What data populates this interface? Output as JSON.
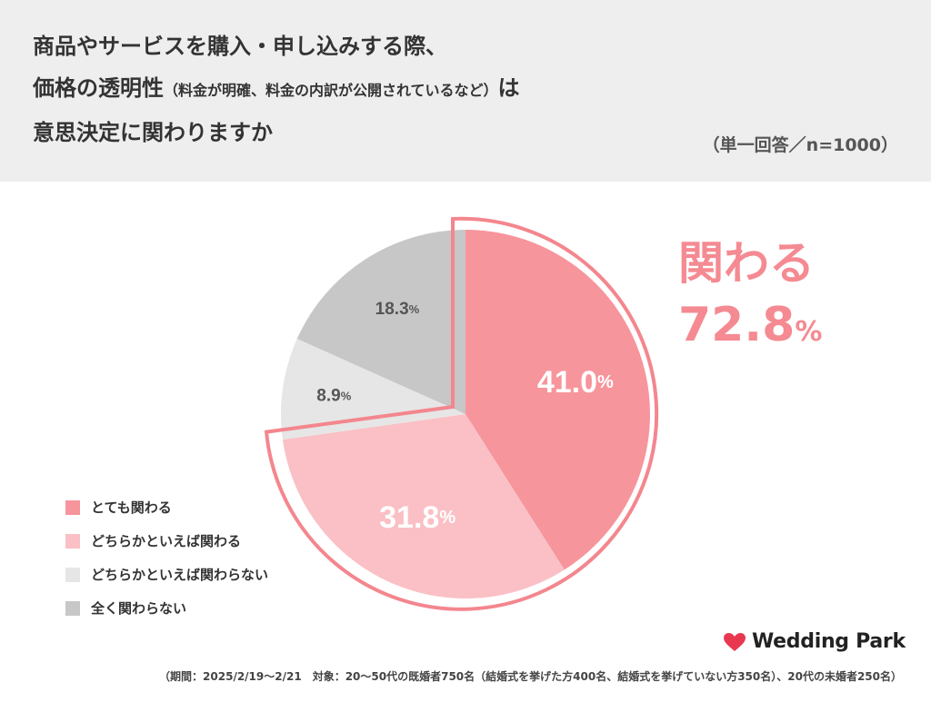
{
  "header": {
    "title_line1": "商品やサービスを購入・申し込みする際、",
    "title_line2_main": "価格の透明性",
    "title_line2_sub": "（料金が明確、料金の内訳が公開されているなど）",
    "title_line2_end": "は",
    "title_line3": "意思決定に関わりますか",
    "note": "（単一回答／n=1000）"
  },
  "highlight": {
    "label": "関わる",
    "value": "72.8",
    "unit": "%"
  },
  "chart_data": {
    "type": "pie",
    "start": "12 o'clock, clockwise",
    "slices": [
      {
        "label": "とても関わる",
        "value": 41.0,
        "display": "41.0",
        "color": "#f7959c",
        "text_color": "#ffffff"
      },
      {
        "label": "どちらかといえば関わる",
        "value": 31.8,
        "display": "31.8",
        "color": "#fac0c5",
        "text_color": "#ffffff"
      },
      {
        "label": "どちらかといえば関わらない",
        "value": 8.9,
        "display": "8.9",
        "color": "#e6e6e6",
        "text_color": "#555555"
      },
      {
        "label": "全く関わらない",
        "value": 18.3,
        "display": "18.3",
        "color": "#c7c7c7",
        "text_color": "#555555"
      }
    ],
    "unit": "%",
    "highlight_outline_color": "#f4868e"
  },
  "brand": {
    "name": "Wedding Park",
    "heart_color": "#e8384f"
  },
  "footnote": "（期間：2025/2/19〜2/21　対象：20〜50代の既婚者750名（結婚式を挙げた方400名、結婚式を挙げていない方350名）、20代の未婚者250名）"
}
